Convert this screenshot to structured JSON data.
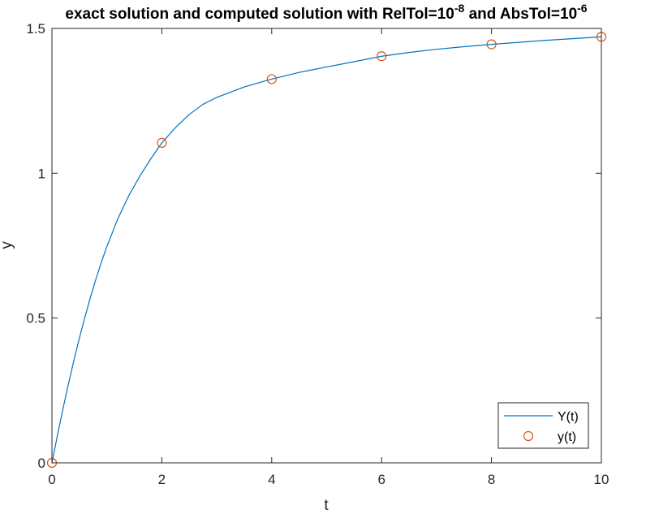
{
  "chart_data": {
    "type": "line",
    "title": {
      "part1": "exact solution and computed solution with RelTol=10",
      "exp1": "-8",
      "part2": " and AbsTol=10",
      "exp2": "-6"
    },
    "xlabel": "t",
    "ylabel": "y",
    "xlim": [
      0,
      10
    ],
    "ylim": [
      0,
      1.5
    ],
    "xticks": [
      0,
      2,
      4,
      6,
      8,
      10
    ],
    "xtick_labels": [
      "0",
      "2",
      "4",
      "6",
      "8",
      "10"
    ],
    "yticks": [
      0,
      0.5,
      1,
      1.5
    ],
    "ytick_labels": [
      "0",
      "0.5",
      "1",
      "1.5"
    ],
    "grid": false,
    "legend_position": "bottom-right",
    "series": [
      {
        "name": "Y(t)",
        "style": "line",
        "color": "#0072BD",
        "x": [
          0,
          0.1,
          0.2,
          0.3,
          0.4,
          0.5,
          0.6,
          0.7,
          0.8,
          0.9,
          1.0,
          1.2,
          1.4,
          1.6,
          1.8,
          2.0,
          2.25,
          2.5,
          2.75,
          3.0,
          3.5,
          4.0,
          4.5,
          5.0,
          5.5,
          6.0,
          6.5,
          7.0,
          7.5,
          8.0,
          8.5,
          9.0,
          9.5,
          10.0
        ],
        "y": [
          0,
          0.095,
          0.186,
          0.272,
          0.354,
          0.431,
          0.503,
          0.571,
          0.634,
          0.693,
          0.747,
          0.843,
          0.923,
          0.99,
          1.05,
          1.105,
          1.158,
          1.203,
          1.238,
          1.262,
          1.298,
          1.325,
          1.348,
          1.367,
          1.385,
          1.404,
          1.417,
          1.428,
          1.437,
          1.445,
          1.452,
          1.459,
          1.465,
          1.471
        ]
      },
      {
        "name": "y(t)",
        "style": "markers",
        "marker": "circle",
        "color": "#D95319",
        "x": [
          0,
          2,
          4,
          6,
          8,
          10
        ],
        "y": [
          0,
          1.105,
          1.325,
          1.404,
          1.445,
          1.471
        ]
      }
    ]
  }
}
